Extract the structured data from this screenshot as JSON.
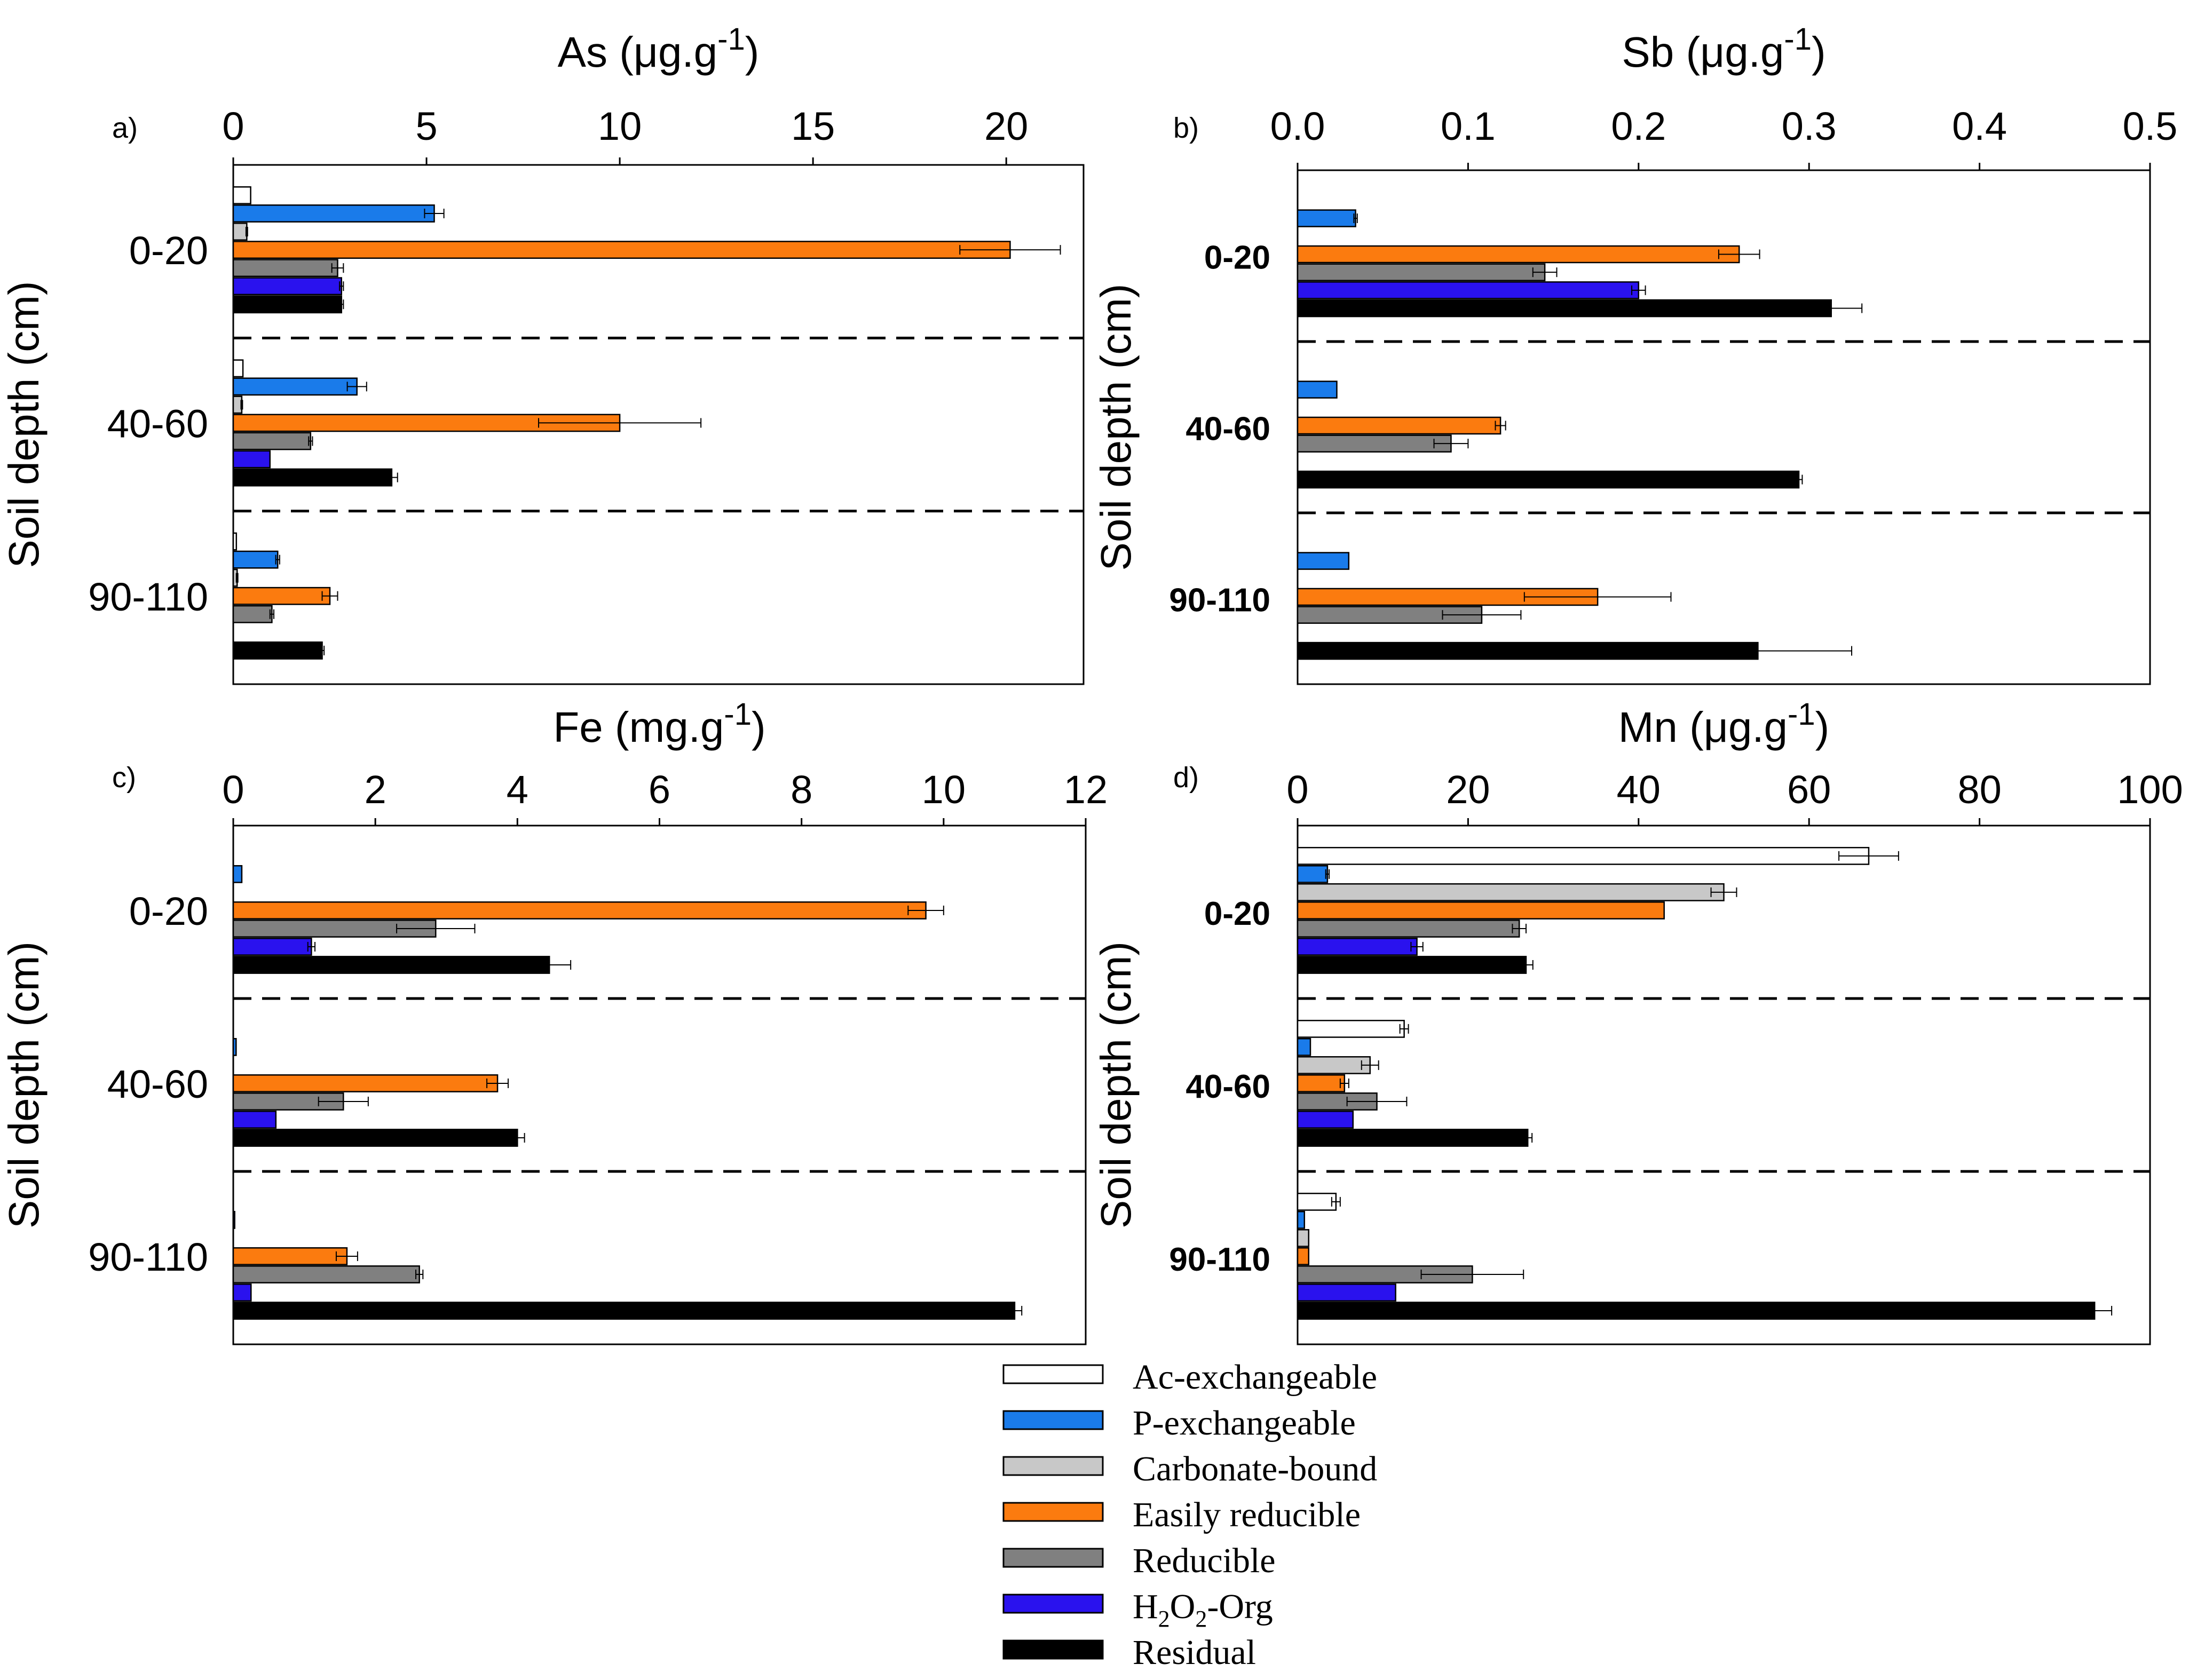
{
  "colors": {
    "ac_exchangeable": "#ffffff",
    "p_exchangeable": "#1a7bea",
    "carbonate_bound": "#c8c8c8",
    "easily_reducible": "#fb7b0f",
    "reducible": "#808080",
    "h2o2_org": "#2a12ee",
    "residual": "#000000"
  },
  "legend": {
    "items": [
      {
        "key": "ac_exchangeable",
        "label": "Ac-exchangeable"
      },
      {
        "key": "p_exchangeable",
        "label": "P-exchangeable"
      },
      {
        "key": "carbonate_bound",
        "label": "Carbonate-bound"
      },
      {
        "key": "easily_reducible",
        "label": "Easily reducible"
      },
      {
        "key": "reducible",
        "label": "Reducible"
      },
      {
        "key": "h2o2_org",
        "label": "H2O2-Org",
        "prefix": "H",
        "sub1": "2",
        "mid": "O",
        "sub2": "2",
        "suffix": "-Org"
      },
      {
        "key": "residual",
        "label": "Residual"
      }
    ]
  },
  "chart_data": [
    {
      "type": "bar",
      "orientation": "horizontal",
      "panel": "a)",
      "title": "As (μg.g-1)",
      "title_base": "As (μg.g",
      "title_sup": "-1",
      "title_tail": ")",
      "ylabel": "Soil depth (cm)",
      "xlim": [
        0,
        22
      ],
      "xticks": [
        0,
        5,
        10,
        15,
        20
      ],
      "categories": [
        "0-20",
        "40-60",
        "90-110"
      ],
      "category_bold": false,
      "series": [
        {
          "key": "ac_exchangeable",
          "name": "Ac-exchangeable",
          "values": [
            0.45,
            0.25,
            0.08
          ],
          "errors": [
            0,
            0,
            0
          ]
        },
        {
          "key": "p_exchangeable",
          "name": "P-exchangeable",
          "values": [
            5.2,
            3.2,
            1.15
          ],
          "errors": [
            0.25,
            0.25,
            0.05
          ]
        },
        {
          "key": "carbonate_bound",
          "name": "Carbonate-bound",
          "values": [
            0.35,
            0.22,
            0.1
          ],
          "errors": [
            0.02,
            0.02,
            0.02
          ]
        },
        {
          "key": "easily_reducible",
          "name": "Easily reducible",
          "values": [
            20.1,
            10.0,
            2.5
          ],
          "errors": [
            1.3,
            2.1,
            0.2
          ]
        },
        {
          "key": "reducible",
          "name": "Reducible",
          "values": [
            2.7,
            2.0,
            1.0
          ],
          "errors": [
            0.15,
            0.05,
            0.05
          ]
        },
        {
          "key": "h2o2_org",
          "name": "H2O2-Org",
          "values": [
            2.8,
            0.95,
            0
          ],
          "errors": [
            0.05,
            0,
            0
          ]
        },
        {
          "key": "residual",
          "name": "Residual",
          "values": [
            2.8,
            4.1,
            2.3
          ],
          "errors": [
            0.05,
            0.15,
            0.05
          ]
        }
      ]
    },
    {
      "type": "bar",
      "orientation": "horizontal",
      "panel": "b)",
      "title": "Sb (μg.g-1)",
      "title_base": "Sb (μg.g",
      "title_sup": "-1",
      "title_tail": ")",
      "ylabel": "Soil depth (cm)",
      "xlim": [
        0,
        0.5
      ],
      "xticks": [
        0.0,
        0.1,
        0.2,
        0.3,
        0.4,
        0.5
      ],
      "xtick_labels": [
        "0.0",
        "0.1",
        "0.2",
        "0.3",
        "0.4",
        "0.5"
      ],
      "categories": [
        "0-20",
        "40-60",
        "90-110"
      ],
      "category_bold": true,
      "series": [
        {
          "key": "ac_exchangeable",
          "name": "Ac-exchangeable",
          "values": [
            0,
            0,
            0
          ],
          "errors": [
            0,
            0,
            0
          ]
        },
        {
          "key": "p_exchangeable",
          "name": "P-exchangeable",
          "values": [
            0.034,
            0.023,
            0.03
          ],
          "errors": [
            0.001,
            0,
            0
          ]
        },
        {
          "key": "carbonate_bound",
          "name": "Carbonate-bound",
          "values": [
            0,
            0,
            0
          ],
          "errors": [
            0,
            0,
            0
          ]
        },
        {
          "key": "easily_reducible",
          "name": "Easily reducible",
          "values": [
            0.259,
            0.119,
            0.176
          ],
          "errors": [
            0.012,
            0.003,
            0.043
          ]
        },
        {
          "key": "reducible",
          "name": "Reducible",
          "values": [
            0.145,
            0.09,
            0.108
          ],
          "errors": [
            0.007,
            0.01,
            0.023
          ]
        },
        {
          "key": "h2o2_org",
          "name": "H2O2-Org",
          "values": [
            0.2,
            0,
            0
          ],
          "errors": [
            0.004,
            0,
            0
          ]
        },
        {
          "key": "residual",
          "name": "Residual",
          "values": [
            0.313,
            0.294,
            0.27
          ],
          "errors": [
            0.018,
            0.002,
            0.055
          ]
        }
      ]
    },
    {
      "type": "bar",
      "orientation": "horizontal",
      "panel": "c)",
      "title": "Fe (mg.g-1)",
      "title_base": "Fe (mg.g",
      "title_sup": "-1",
      "title_tail": ")",
      "ylabel": "Soil depth (cm)",
      "xlim": [
        0,
        12
      ],
      "xticks": [
        0,
        2,
        4,
        6,
        8,
        10,
        12
      ],
      "categories": [
        "0-20",
        "40-60",
        "90-110"
      ],
      "category_bold": false,
      "series": [
        {
          "key": "ac_exchangeable",
          "name": "Ac-exchangeable",
          "values": [
            0,
            0,
            0
          ],
          "errors": [
            0,
            0,
            0
          ]
        },
        {
          "key": "p_exchangeable",
          "name": "P-exchangeable",
          "values": [
            0.12,
            0.04,
            0.02
          ],
          "errors": [
            0,
            0,
            0
          ]
        },
        {
          "key": "carbonate_bound",
          "name": "Carbonate-bound",
          "values": [
            0,
            0,
            0
          ],
          "errors": [
            0,
            0,
            0
          ]
        },
        {
          "key": "easily_reducible",
          "name": "Easily reducible",
          "values": [
            9.75,
            3.72,
            1.6
          ],
          "errors": [
            0.25,
            0.15,
            0.15
          ]
        },
        {
          "key": "reducible",
          "name": "Reducible",
          "values": [
            2.85,
            1.55,
            2.62
          ],
          "errors": [
            0.55,
            0.35,
            0.05
          ]
        },
        {
          "key": "h2o2_org",
          "name": "H2O2-Org",
          "values": [
            1.1,
            0.6,
            0.25
          ],
          "errors": [
            0.05,
            0,
            0
          ]
        },
        {
          "key": "residual",
          "name": "Residual",
          "values": [
            4.45,
            4.0,
            11.0
          ],
          "errors": [
            0.3,
            0.1,
            0.1
          ]
        }
      ]
    },
    {
      "type": "bar",
      "orientation": "horizontal",
      "panel": "d)",
      "title": "Mn (μg.g-1)",
      "title_base": "Mn (μg.g",
      "title_sup": "-1",
      "title_tail": ")",
      "ylabel": "Soil depth (cm)",
      "xlim": [
        0,
        100
      ],
      "xticks": [
        0,
        20,
        40,
        60,
        80,
        100
      ],
      "categories": [
        "0-20",
        "40-60",
        "90-110"
      ],
      "category_bold": true,
      "series": [
        {
          "key": "ac_exchangeable",
          "name": "Ac-exchangeable",
          "values": [
            67,
            12.5,
            4.5
          ],
          "errors": [
            3.5,
            0.5,
            0.5
          ]
        },
        {
          "key": "p_exchangeable",
          "name": "P-exchangeable",
          "values": [
            3.5,
            1.5,
            0.8
          ],
          "errors": [
            0.2,
            0,
            0
          ]
        },
        {
          "key": "carbonate_bound",
          "name": "Carbonate-bound",
          "values": [
            50,
            8.5,
            1.3
          ],
          "errors": [
            1.5,
            1.0,
            0
          ]
        },
        {
          "key": "easily_reducible",
          "name": "Easily reducible",
          "values": [
            43,
            5.5,
            1.3
          ],
          "errors": [
            0,
            0.5,
            0
          ]
        },
        {
          "key": "reducible",
          "name": "Reducible",
          "values": [
            26,
            9.3,
            20.5
          ],
          "errors": [
            0.8,
            3.5,
            6.0
          ]
        },
        {
          "key": "h2o2_org",
          "name": "H2O2-Org",
          "values": [
            14,
            6.5,
            11.5
          ],
          "errors": [
            0.7,
            0,
            0
          ]
        },
        {
          "key": "residual",
          "name": "Residual",
          "values": [
            26.8,
            27,
            93.5
          ],
          "errors": [
            0.8,
            0.5,
            2.0
          ]
        }
      ]
    }
  ]
}
